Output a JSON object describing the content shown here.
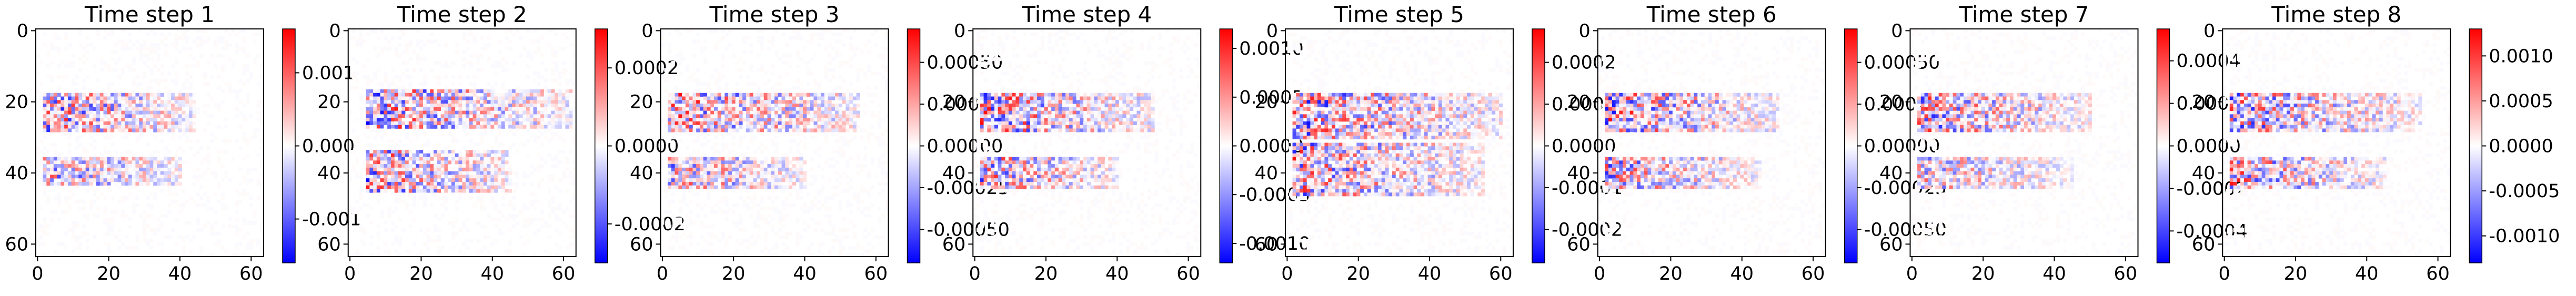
{
  "figure": {
    "colormap": "bwr",
    "colors": {
      "negative": "#0000ff",
      "zero": "#ffffff",
      "positive": "#ff0000",
      "axis": "#000000"
    }
  },
  "chart_data": [
    {
      "type": "heatmap",
      "title": "Time step 1",
      "xlabel": "",
      "ylabel": "",
      "xlim": [
        0,
        63
      ],
      "ylim": [
        63,
        0
      ],
      "xticks": [
        "0",
        "20",
        "40",
        "60"
      ],
      "xtick_values": [
        0,
        20,
        40,
        60
      ],
      "yticks": [
        "0",
        "20",
        "40",
        "60"
      ],
      "ytick_values": [
        0,
        20,
        40,
        60
      ],
      "colorbar": {
        "range": [
          -0.0016,
          0.0016
        ],
        "ticks": [
          "0.001",
          "0.000",
          "-0.001"
        ],
        "tick_values": [
          0.001,
          0.0,
          -0.001
        ]
      },
      "features": [
        {
          "x": [
            2,
            44
          ],
          "y": [
            18,
            28
          ],
          "amplitude": 0.0016
        },
        {
          "x": [
            2,
            40
          ],
          "y": [
            36,
            43
          ],
          "amplitude": 0.0014
        }
      ]
    },
    {
      "type": "heatmap",
      "title": "Time step 2",
      "xlabel": "",
      "ylabel": "",
      "xlim": [
        0,
        63
      ],
      "ylim": [
        63,
        0
      ],
      "xticks": [
        "0",
        "20",
        "40",
        "60"
      ],
      "xtick_values": [
        0,
        20,
        40,
        60
      ],
      "yticks": [
        "0",
        "20",
        "40",
        "60"
      ],
      "ytick_values": [
        0,
        20,
        40,
        60
      ],
      "colorbar": {
        "range": [
          -0.0003,
          0.0003
        ],
        "ticks": [
          "0.0002",
          "0.0000",
          "-0.0002"
        ],
        "tick_values": [
          0.0002,
          0.0,
          -0.0002
        ]
      },
      "features": [
        {
          "x": [
            5,
            62
          ],
          "y": [
            17,
            27
          ],
          "amplitude": 0.0003
        },
        {
          "x": [
            5,
            45
          ],
          "y": [
            34,
            45
          ],
          "amplitude": 0.0003
        }
      ]
    },
    {
      "type": "heatmap",
      "title": "Time step 3",
      "xlabel": "",
      "ylabel": "",
      "xlim": [
        0,
        63
      ],
      "ylim": [
        63,
        0
      ],
      "xticks": [
        "0",
        "20",
        "40",
        "60"
      ],
      "xtick_values": [
        0,
        20,
        40,
        60
      ],
      "yticks": [
        "0",
        "20",
        "40",
        "60"
      ],
      "ytick_values": [
        0,
        20,
        40,
        60
      ],
      "colorbar": {
        "range": [
          -0.0007,
          0.0007
        ],
        "ticks": [
          "0.00050",
          "0.00025",
          "0.00000",
          "-0.00025",
          "-0.00050"
        ],
        "tick_values": [
          0.0005,
          0.00025,
          0.0,
          -0.00025,
          -0.0005
        ]
      },
      "features": [
        {
          "x": [
            2,
            55
          ],
          "y": [
            18,
            28
          ],
          "amplitude": 0.0007
        },
        {
          "x": [
            2,
            40
          ],
          "y": [
            36,
            44
          ],
          "amplitude": 0.0006
        }
      ]
    },
    {
      "type": "heatmap",
      "title": "Time step 4",
      "xlabel": "",
      "ylabel": "",
      "xlim": [
        0,
        63
      ],
      "ylim": [
        63,
        0
      ],
      "xticks": [
        "0",
        "20",
        "40",
        "60"
      ],
      "xtick_values": [
        0,
        20,
        40,
        60
      ],
      "yticks": [
        "0",
        "20",
        "40",
        "60"
      ],
      "ytick_values": [
        0,
        20,
        40,
        60
      ],
      "colorbar": {
        "range": [
          -0.0012,
          0.0012
        ],
        "ticks": [
          "0.0010",
          "0.0005",
          "0.0000",
          "-0.0005",
          "-0.0010"
        ],
        "tick_values": [
          0.001,
          0.0005,
          0.0,
          -0.0005,
          -0.001
        ]
      },
      "features": [
        {
          "x": [
            2,
            50
          ],
          "y": [
            18,
            28
          ],
          "amplitude": 0.0012
        },
        {
          "x": [
            2,
            40
          ],
          "y": [
            36,
            44
          ],
          "amplitude": 0.0011
        }
      ]
    },
    {
      "type": "heatmap",
      "title": "Time step 5",
      "xlabel": "",
      "ylabel": "",
      "xlim": [
        0,
        63
      ],
      "ylim": [
        63,
        0
      ],
      "xticks": [
        "0",
        "20",
        "40",
        "60"
      ],
      "xtick_values": [
        0,
        20,
        40,
        60
      ],
      "yticks": [
        "0",
        "20",
        "40",
        "60"
      ],
      "ytick_values": [
        0,
        20,
        40,
        60
      ],
      "colorbar": {
        "range": [
          -0.00028,
          0.00028
        ],
        "ticks": [
          "0.0002",
          "0.0001",
          "0.0000",
          "-0.0001",
          "-0.0002"
        ],
        "tick_values": [
          0.0002,
          0.0001,
          0.0,
          -0.0001,
          -0.0002
        ]
      },
      "features": [
        {
          "x": [
            2,
            60
          ],
          "y": [
            18,
            30
          ],
          "amplitude": 0.00028
        },
        {
          "x": [
            2,
            55
          ],
          "y": [
            32,
            46
          ],
          "amplitude": 0.00026
        }
      ]
    },
    {
      "type": "heatmap",
      "title": "Time step 6",
      "xlabel": "",
      "ylabel": "",
      "xlim": [
        0,
        63
      ],
      "ylim": [
        63,
        0
      ],
      "xticks": [
        "0",
        "20",
        "40",
        "60"
      ],
      "xtick_values": [
        0,
        20,
        40,
        60
      ],
      "yticks": [
        "0",
        "20",
        "40",
        "60"
      ],
      "ytick_values": [
        0,
        20,
        40,
        60
      ],
      "colorbar": {
        "range": [
          -0.0007,
          0.0007
        ],
        "ticks": [
          "0.00050",
          "0.00025",
          "0.00000",
          "-0.00025",
          "-0.00050"
        ],
        "tick_values": [
          0.0005,
          0.00025,
          0.0,
          -0.00025,
          -0.0005
        ]
      },
      "features": [
        {
          "x": [
            2,
            50
          ],
          "y": [
            18,
            28
          ],
          "amplitude": 0.0007
        },
        {
          "x": [
            2,
            45
          ],
          "y": [
            36,
            44
          ],
          "amplitude": 0.0006
        }
      ]
    },
    {
      "type": "heatmap",
      "title": "Time step 7",
      "xlabel": "",
      "ylabel": "",
      "xlim": [
        0,
        63
      ],
      "ylim": [
        63,
        0
      ],
      "xticks": [
        "0",
        "20",
        "40",
        "60"
      ],
      "xtick_values": [
        0,
        20,
        40,
        60
      ],
      "yticks": [
        "0",
        "20",
        "40",
        "60"
      ],
      "ytick_values": [
        0,
        20,
        40,
        60
      ],
      "colorbar": {
        "range": [
          -0.00055,
          0.00055
        ],
        "ticks": [
          "0.0004",
          "0.0002",
          "0.0000",
          "-0.0002",
          "-0.0004"
        ],
        "tick_values": [
          0.0004,
          0.0002,
          0.0,
          -0.0002,
          -0.0004
        ]
      },
      "features": [
        {
          "x": [
            2,
            50
          ],
          "y": [
            18,
            28
          ],
          "amplitude": 0.0005
        },
        {
          "x": [
            2,
            45
          ],
          "y": [
            36,
            44
          ],
          "amplitude": 0.0004
        }
      ]
    },
    {
      "type": "heatmap",
      "title": "Time step 8",
      "xlabel": "",
      "ylabel": "",
      "xlim": [
        0,
        63
      ],
      "ylim": [
        63,
        0
      ],
      "xticks": [
        "0",
        "20",
        "40",
        "60"
      ],
      "xtick_values": [
        0,
        20,
        40,
        60
      ],
      "yticks": [
        "0",
        "20",
        "40",
        "60"
      ],
      "ytick_values": [
        0,
        20,
        40,
        60
      ],
      "colorbar": {
        "range": [
          -0.0013,
          0.0013
        ],
        "ticks": [
          "0.0010",
          "0.0005",
          "0.0000",
          "-0.0005",
          "-0.0010"
        ],
        "tick_values": [
          0.001,
          0.0005,
          0.0,
          -0.0005,
          -0.001
        ]
      },
      "features": [
        {
          "x": [
            2,
            55
          ],
          "y": [
            18,
            28
          ],
          "amplitude": 0.0012
        },
        {
          "x": [
            2,
            45
          ],
          "y": [
            36,
            44
          ],
          "amplitude": 0.0012
        }
      ]
    }
  ]
}
